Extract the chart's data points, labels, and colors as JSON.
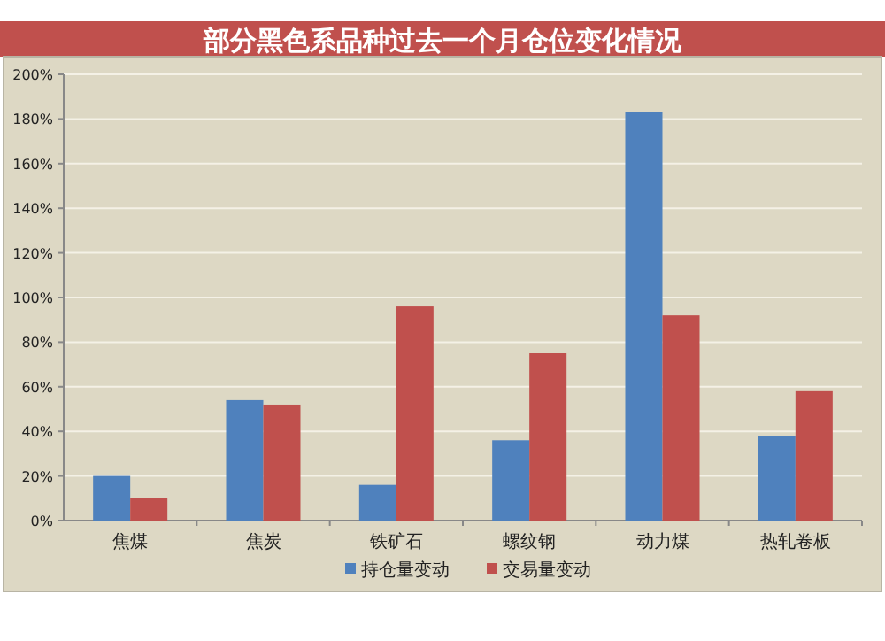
{
  "chart_data": {
    "type": "bar",
    "title": "部分黑色系品种过去一个月仓位变化情况",
    "categories": [
      "焦煤",
      "焦炭",
      "铁矿石",
      "螺纹钢",
      "动力煤",
      "热轧卷板"
    ],
    "series": [
      {
        "name": "持仓量变动",
        "color": "#4f81bd",
        "values": [
          20,
          54,
          16,
          36,
          183,
          38
        ]
      },
      {
        "name": "交易量变动",
        "color": "#c0504d",
        "values": [
          10,
          52,
          96,
          75,
          92,
          58
        ]
      }
    ],
    "ylim": [
      0,
      200
    ],
    "yticks": [
      {
        "value": 0,
        "label": "0%"
      },
      {
        "value": 20,
        "label": "20%"
      },
      {
        "value": 40,
        "label": "40%"
      },
      {
        "value": 60,
        "label": "60%"
      },
      {
        "value": 80,
        "label": "80%"
      },
      {
        "value": 100,
        "label": "100%"
      },
      {
        "value": 120,
        "label": "120%"
      },
      {
        "value": 140,
        "label": "140%"
      },
      {
        "value": 160,
        "label": "160%"
      },
      {
        "value": 180,
        "label": "180%"
      },
      {
        "value": 200,
        "label": "200%"
      }
    ],
    "grid": "y",
    "legend": "bottom"
  }
}
